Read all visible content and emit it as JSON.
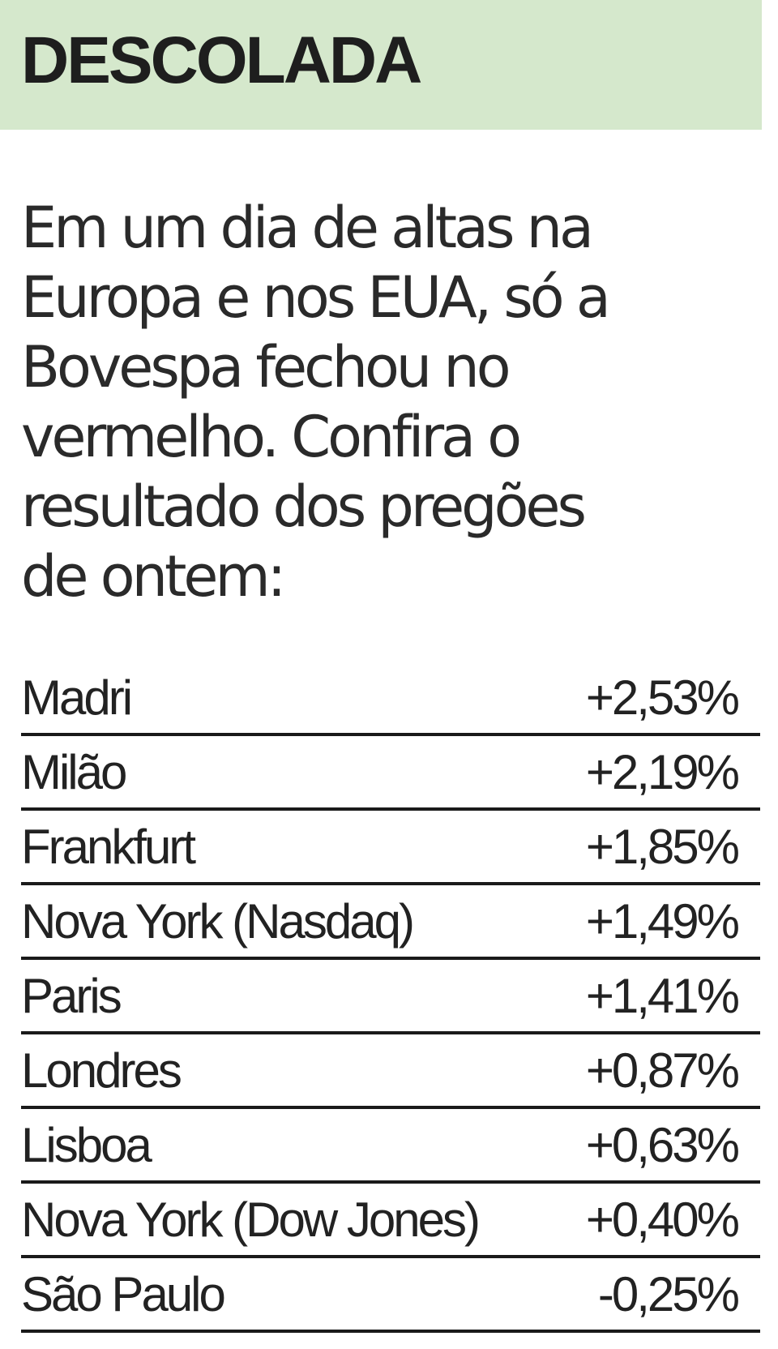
{
  "header": {
    "title": "DESCOLADA"
  },
  "intro": {
    "lines": [
      "Em um dia de altas na",
      "Europa e nos EUA, só a",
      "Bovespa fechou no",
      "vermelho. Confira o",
      "resultado dos pregões",
      "de ontem:"
    ]
  },
  "table": {
    "rows": [
      [
        "Madri",
        "+2,53%"
      ],
      [
        "Milão",
        "+2,19%"
      ],
      [
        "Frankfurt",
        "+1,85%"
      ],
      [
        "Nova York (Nasdaq)",
        "+1,49%"
      ],
      [
        "Paris",
        "+1,41%"
      ],
      [
        "Londres",
        "+0,87%"
      ],
      [
        "Lisboa",
        "+0,63%"
      ],
      [
        "Nova York (Dow Jones)",
        "+0,40%"
      ],
      [
        "São Paulo",
        "-0,25%"
      ]
    ]
  }
}
